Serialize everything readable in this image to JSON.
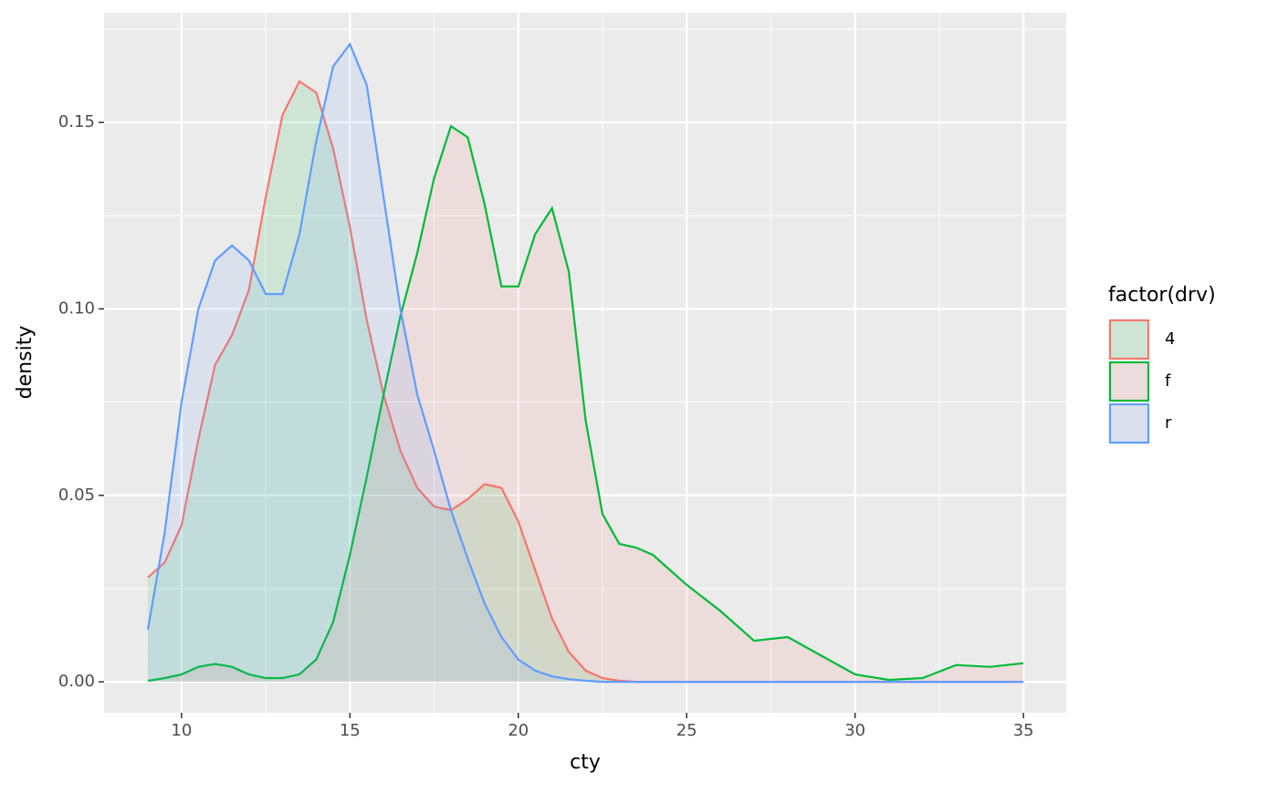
{
  "chart_data": {
    "type": "density",
    "x_label": "cty",
    "y_label": "density",
    "legend_title": "factor(drv)",
    "x": [
      9,
      9.5,
      10,
      10.5,
      11,
      11.5,
      12,
      12.5,
      13,
      13.5,
      14,
      14.5,
      15,
      15.5,
      16,
      16.5,
      17,
      17.5,
      18,
      18.5,
      19,
      19.5,
      20,
      20.5,
      21,
      21.5,
      22,
      22.5,
      23,
      23.5,
      24,
      24.5,
      25,
      26,
      27,
      28,
      29,
      30,
      31,
      32,
      33,
      34,
      35
    ],
    "series": [
      {
        "name": "4",
        "color": "#F8766D",
        "fill": "#00BA38",
        "values": [
          0.028,
          0.032,
          0.042,
          0.065,
          0.085,
          0.093,
          0.105,
          0.13,
          0.152,
          0.161,
          0.158,
          0.143,
          0.122,
          0.097,
          0.077,
          0.062,
          0.052,
          0.047,
          0.046,
          0.049,
          0.053,
          0.052,
          0.043,
          0.03,
          0.017,
          0.008,
          0.003,
          0.001,
          0.0003,
          0,
          0,
          0,
          0,
          0,
          0,
          0,
          0,
          0,
          0,
          0,
          0,
          0,
          0
        ]
      },
      {
        "name": "f",
        "color": "#00BA38",
        "fill": "#F8766D",
        "values": [
          0.0003,
          0.001,
          0.002,
          0.004,
          0.0048,
          0.004,
          0.002,
          0.001,
          0.001,
          0.002,
          0.006,
          0.016,
          0.034,
          0.055,
          0.077,
          0.098,
          0.115,
          0.135,
          0.149,
          0.146,
          0.128,
          0.106,
          0.106,
          0.12,
          0.127,
          0.11,
          0.07,
          0.045,
          0.037,
          0.036,
          0.034,
          0.03,
          0.026,
          0.019,
          0.011,
          0.012,
          0.007,
          0.002,
          0.0005,
          0.001,
          0.0045,
          0.004,
          0.005
        ]
      },
      {
        "name": "r",
        "color": "#619CFF",
        "fill": "#619CFF",
        "values": [
          0.014,
          0.04,
          0.075,
          0.1,
          0.113,
          0.117,
          0.113,
          0.104,
          0.104,
          0.12,
          0.145,
          0.165,
          0.171,
          0.16,
          0.13,
          0.1,
          0.077,
          0.062,
          0.046,
          0.033,
          0.021,
          0.012,
          0.006,
          0.003,
          0.0015,
          0.0007,
          0.0003,
          0,
          0,
          0,
          0,
          0,
          0,
          0,
          0,
          0,
          0,
          0,
          0,
          0,
          0,
          0,
          0
        ]
      }
    ],
    "xlim": [
      7.7,
      36.27
    ],
    "xticks": [
      10,
      15,
      20,
      25,
      30,
      35
    ],
    "ylim": [
      -0.0083,
      0.1794
    ],
    "yticks": [
      {
        "value": 0,
        "label": "0.00"
      },
      0.05,
      {
        "value": 0.1,
        "label": "0.10"
      },
      0.15
    ],
    "grid": true
  }
}
